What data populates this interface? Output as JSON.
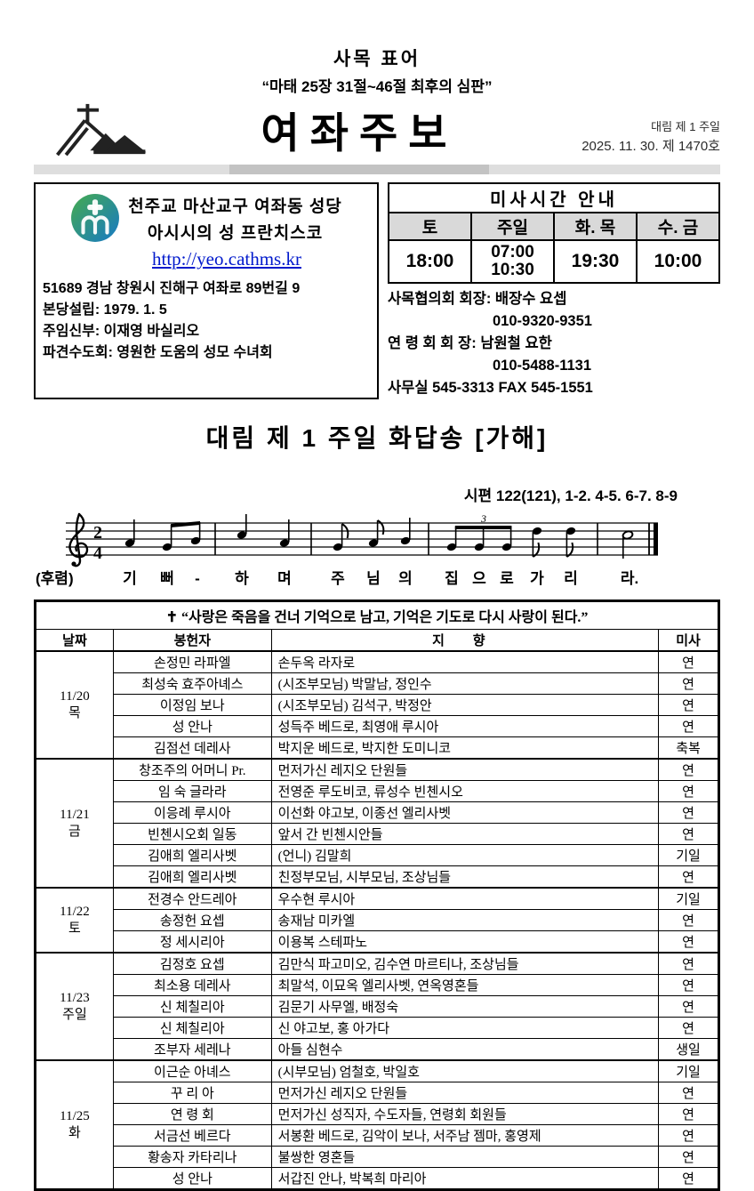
{
  "header": {
    "motto_title": "사목 표어",
    "motto_quote": "“마태 25장 31절~46절 최후의 심판”",
    "title": "여좌주보",
    "week_label": "대림 제 1 주일",
    "issue_line": "2025. 11. 30. 제 1470호"
  },
  "church": {
    "name_line1": "천주교 마산교구 여좌동 성당",
    "name_line2": "아시시의 성 프란치스코",
    "url": "http://yeo.cathms.kr",
    "lines": [
      "51689 경남 창원시 진해구 여좌로 89번길 9",
      "본당설립: 1979. 1. 5",
      "주임신부: 이재영 바실리오",
      "파견수도회: 영원한 도움의 성모 수녀회"
    ]
  },
  "mass_table": {
    "title": "미사시간 안내",
    "headers": [
      "토",
      "주일",
      "화. 목",
      "수. 금"
    ],
    "times": [
      "18:00",
      "07:00",
      "10:30",
      "19:30",
      "10:00"
    ]
  },
  "contacts": {
    "lines": [
      "사목협의회 회장: 배장수 요셉",
      "010-9320-9351",
      "연 령 회  회 장: 남원철 요한",
      "010-5488-1131",
      "사무실 545-3313  FAX 545-1551"
    ]
  },
  "response": {
    "heading": "대림 제 1 주일 화답송 [가해]",
    "psalm_reference": "시편 122(121), 1-2. 4-5. 6-7. 8-9"
  },
  "music": {
    "clef": "treble",
    "meter_upper": "2",
    "meter_lower": "4",
    "triplet_mark": "3",
    "refrain_label": "(후렴)",
    "lyrics": [
      "기",
      "뻐",
      "-",
      "하",
      "며",
      "주",
      "님",
      "의",
      "집",
      "으",
      "로",
      "가",
      "리",
      "라."
    ]
  },
  "intentions": {
    "quote_symbol": "✝",
    "quote": "“사랑은 죽음을 건너 기억으로 남고, 기억은 기도로 다시 사랑이 된다.”",
    "headers": [
      "날짜",
      "봉헌자",
      "지 향",
      "미사"
    ],
    "groups": [
      {
        "date": "11/20",
        "day": "목",
        "rows": [
          {
            "donor": "손정민 라파엘",
            "intention": "손두옥 라자로",
            "mass": "연"
          },
          {
            "donor": "최성숙 효주아녜스",
            "intention": "(시조부모님) 박말남, 정인수",
            "mass": "연"
          },
          {
            "donor": "이정임 보나",
            "intention": "(시조부모님) 김석구, 박정안",
            "mass": "연"
          },
          {
            "donor": "성 안나",
            "intention": "성득주 베드로, 최영애 루시아",
            "mass": "연"
          },
          {
            "donor": "김점선 데레사",
            "intention": "박지운 베드로, 박지한 도미니코",
            "mass": "축복"
          }
        ]
      },
      {
        "date": "11/21",
        "day": "금",
        "rows": [
          {
            "donor": "창조주의 어머니 Pr.",
            "intention": "먼저가신 레지오 단원들",
            "mass": "연"
          },
          {
            "donor": "임 숙 글라라",
            "intention": "전영준 루도비코, 류성수 빈첸시오",
            "mass": "연"
          },
          {
            "donor": "이응례 루시아",
            "intention": "이선화 야고보, 이종선 엘리사벳",
            "mass": "연"
          },
          {
            "donor": "빈첸시오회 일동",
            "intention": "앞서 간 빈첸시안들",
            "mass": "연"
          },
          {
            "donor": "김애희 엘리사벳",
            "intention": "(언니) 김말희",
            "mass": "기일"
          },
          {
            "donor": "김애희 엘리사벳",
            "intention": "친정부모님, 시부모님, 조상님들",
            "mass": "연"
          }
        ]
      },
      {
        "date": "11/22",
        "day": "토",
        "rows": [
          {
            "donor": "전경수 안드레아",
            "intention": "우수현 루시아",
            "mass": "기일"
          },
          {
            "donor": "송정헌 요셉",
            "intention": "송재남 미카엘",
            "mass": "연"
          },
          {
            "donor": "정 세시리아",
            "intention": "이용복 스테파노",
            "mass": "연"
          }
        ]
      },
      {
        "date": "11/23",
        "day": "주일",
        "rows": [
          {
            "donor": "김정호 요셉",
            "intention": "김만식 파고미오, 김수연 마르티나, 조상님들",
            "mass": "연"
          },
          {
            "donor": "최소용 데레사",
            "intention": "최말석, 이묘옥 엘리사벳, 연옥영혼들",
            "mass": "연"
          },
          {
            "donor": "신 체칠리아",
            "intention": "김문기 사무엘, 배정숙",
            "mass": "연"
          },
          {
            "donor": "신 체칠리아",
            "intention": "신 야고보, 홍 아가다",
            "mass": "연"
          },
          {
            "donor": "조부자 세레나",
            "intention": "아들 심현수",
            "mass": "생일"
          }
        ]
      },
      {
        "date": "11/25",
        "day": "화",
        "rows": [
          {
            "donor": "이근순 아녜스",
            "intention": "(시부모님) 엄철호, 박일호",
            "mass": "기일"
          },
          {
            "donor": "꾸 리 아",
            "intention": "먼저가신 레지오 단원들",
            "mass": "연"
          },
          {
            "donor": "연 령 회",
            "intention": "먼저가신 성직자, 수도자들, 연령회 회원들",
            "mass": "연"
          },
          {
            "donor": "서금선 베르다",
            "intention": "서봉환 베드로, 김악이 보나, 서주남 젬마, 홍영제",
            "mass": "연"
          },
          {
            "donor": "황송자 카타리나",
            "intention": "불쌍한 영혼들",
            "mass": "연"
          },
          {
            "donor": "성 안나",
            "intention": "서갑진 안나, 박복희 마리아",
            "mass": "연"
          }
        ]
      }
    ]
  }
}
